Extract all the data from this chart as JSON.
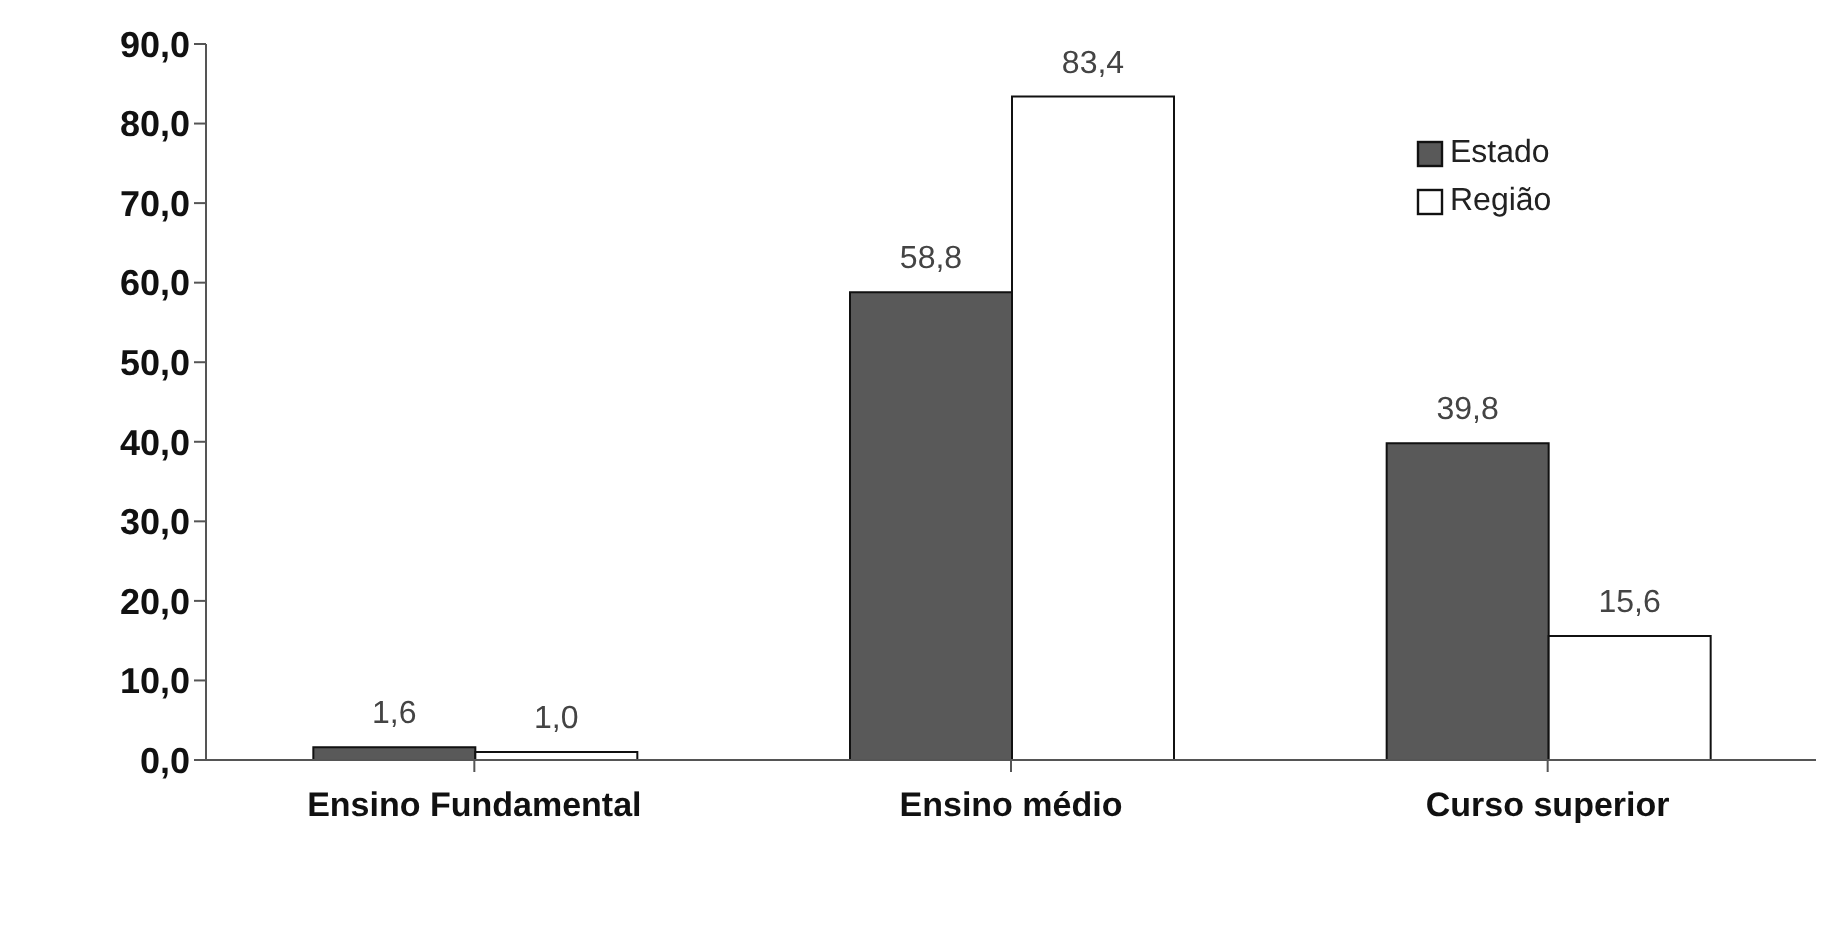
{
  "chart_data": {
    "type": "bar",
    "categories": [
      "Ensino Fundamental",
      "Ensino médio",
      "Curso superior"
    ],
    "series": [
      {
        "name": "Estado",
        "color": "#595959",
        "values": [
          1.6,
          58.8,
          39.8
        ],
        "value_labels": [
          "1,6",
          "58,8",
          "39,8"
        ]
      },
      {
        "name": "Região",
        "color": "#ffffff",
        "values": [
          1.0,
          83.4,
          15.6
        ],
        "value_labels": [
          "1,0",
          "83,4",
          "15,6"
        ]
      }
    ],
    "ylim": [
      0,
      90
    ],
    "yticks": [
      {
        "value": 0,
        "label": "0,0"
      },
      {
        "value": 10,
        "label": "10,0"
      },
      {
        "value": 20,
        "label": "20,0"
      },
      {
        "value": 30,
        "label": "30,0"
      },
      {
        "value": 40,
        "label": "40,0"
      },
      {
        "value": 50,
        "label": "50,0"
      },
      {
        "value": 60,
        "label": "60,0"
      },
      {
        "value": 70,
        "label": "70,0"
      },
      {
        "value": 80,
        "label": "80,0"
      },
      {
        "value": 90,
        "label": "90,0"
      }
    ],
    "grid": false,
    "legend": "top right"
  }
}
